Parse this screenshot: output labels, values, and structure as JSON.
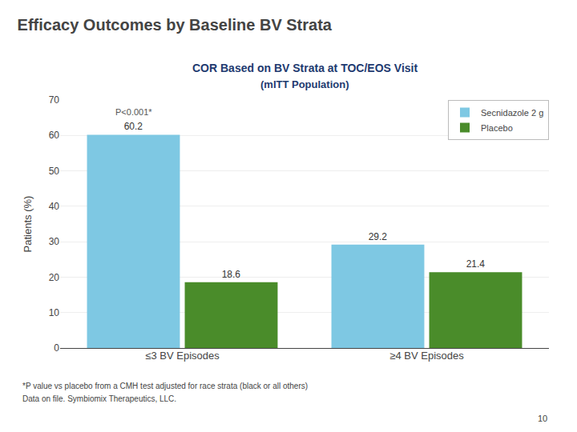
{
  "chart_data": {
    "type": "bar",
    "title": "Efficacy Outcomes by Baseline BV Strata",
    "subtitle": [
      "COR Based on BV Strata at TOC/EOS Visit",
      "(mITT Population)"
    ],
    "categories": [
      "≤3 BV Episodes",
      "≥4 BV Episodes"
    ],
    "series": [
      {
        "name": "Secnidazole 2 g",
        "color": "#7EC8E3",
        "values": [
          60.2,
          29.2
        ]
      },
      {
        "name": "Placebo",
        "color": "#4A8C2A",
        "values": [
          18.6,
          21.4
        ]
      }
    ],
    "ylabel": "Patients (%)",
    "ylim": [
      0,
      70
    ],
    "yticks": [
      0,
      10,
      20,
      30,
      40,
      50,
      60,
      70
    ],
    "grid": true,
    "legend": "upper right",
    "data_labels": true,
    "annotations": [
      {
        "text": "P<0.001*",
        "category": "≤3 BV Episodes",
        "series": "Secnidazole 2 g"
      }
    ],
    "footnotes": [
      "*P value vs placebo from a CMH test adjusted for race strata (black or all others)",
      "Data on file. Symbiomix Therapeutics, LLC."
    ],
    "slide_number": "10"
  }
}
